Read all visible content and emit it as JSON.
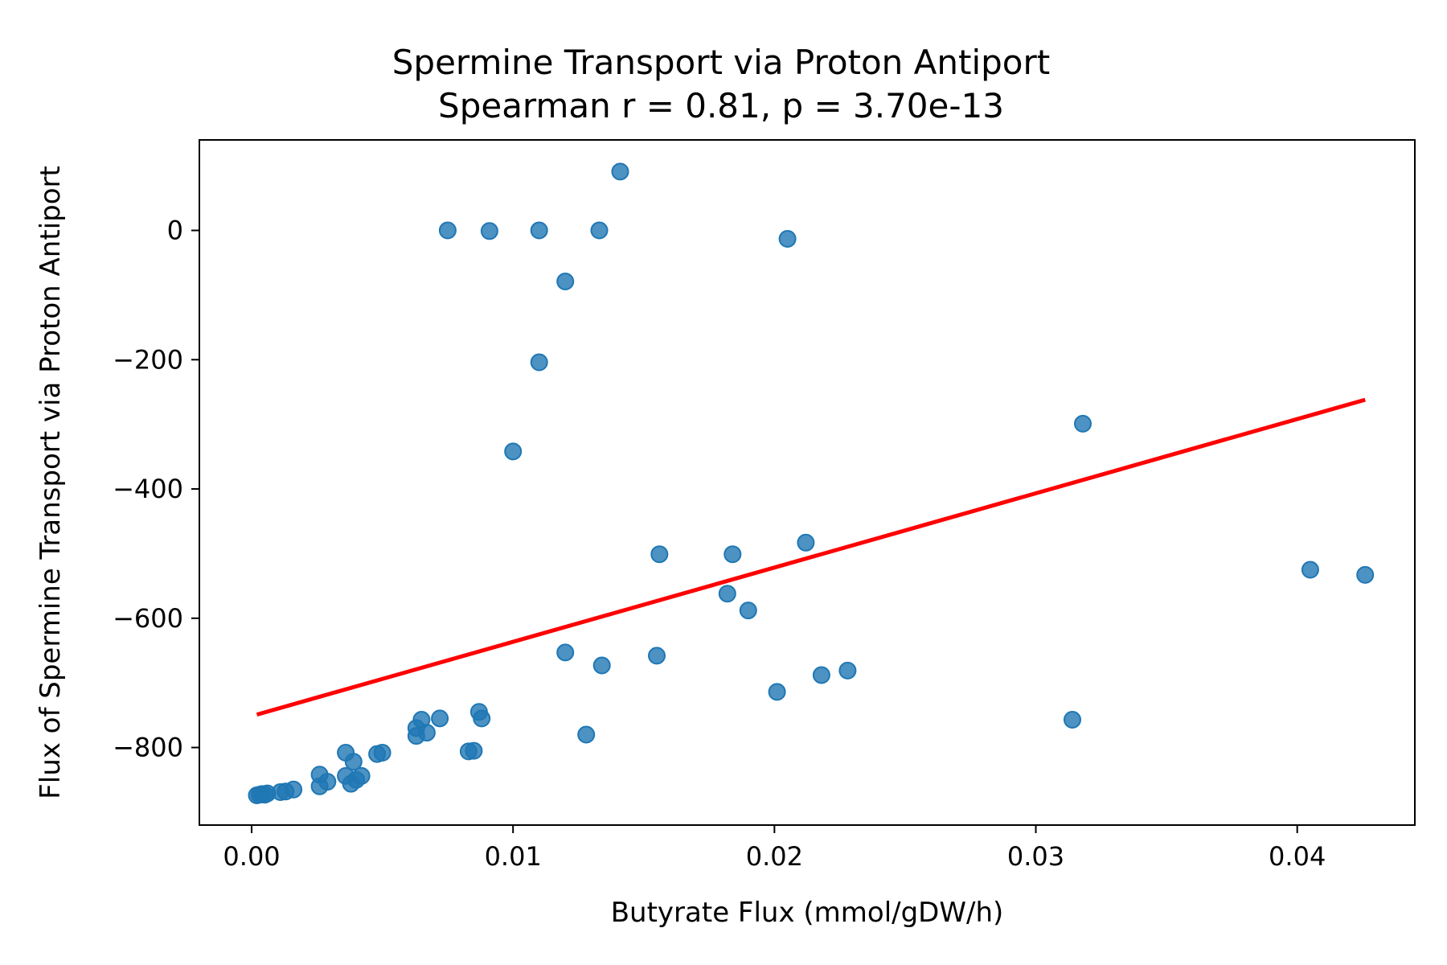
{
  "chart_data": {
    "type": "scatter",
    "title": "Spermine Transport via Proton Antiport",
    "subtitle": "Spearman r = 0.81, p = 3.70e-13",
    "xlabel": "Butyrate Flux (mmol/gDW/h)",
    "ylabel": "Flux of Spermine Transport via Proton Antiport",
    "xlim": [
      -0.002,
      0.0445
    ],
    "ylim": [
      -920,
      140
    ],
    "xticks": [
      0.0,
      0.01,
      0.02,
      0.03,
      0.04
    ],
    "xtick_labels": [
      "0.00",
      "0.01",
      "0.02",
      "0.03",
      "0.04"
    ],
    "yticks": [
      0,
      -200,
      -400,
      -600,
      -800
    ],
    "ytick_labels": [
      "0",
      "−200",
      "−400",
      "−600",
      "−800"
    ],
    "grid": false,
    "colors": {
      "points": "#1f77b4",
      "fit_line": "#ff0000"
    },
    "series": [
      {
        "type": "scatter",
        "points": [
          {
            "x": 0.0002,
            "y": -874
          },
          {
            "x": 0.0003,
            "y": -873
          },
          {
            "x": 0.0004,
            "y": -872
          },
          {
            "x": 0.0005,
            "y": -873
          },
          {
            "x": 0.0006,
            "y": -871
          },
          {
            "x": 0.0011,
            "y": -869
          },
          {
            "x": 0.0013,
            "y": -868
          },
          {
            "x": 0.0016,
            "y": -865
          },
          {
            "x": 0.0026,
            "y": -860
          },
          {
            "x": 0.0026,
            "y": -842
          },
          {
            "x": 0.0029,
            "y": -853
          },
          {
            "x": 0.0036,
            "y": -808
          },
          {
            "x": 0.0036,
            "y": -844
          },
          {
            "x": 0.0038,
            "y": -856
          },
          {
            "x": 0.0039,
            "y": -822
          },
          {
            "x": 0.004,
            "y": -850
          },
          {
            "x": 0.0042,
            "y": -844
          },
          {
            "x": 0.0048,
            "y": -810
          },
          {
            "x": 0.005,
            "y": -808
          },
          {
            "x": 0.0063,
            "y": -770
          },
          {
            "x": 0.0063,
            "y": -782
          },
          {
            "x": 0.0065,
            "y": -757
          },
          {
            "x": 0.0067,
            "y": -777
          },
          {
            "x": 0.0072,
            "y": -755
          },
          {
            "x": 0.0075,
            "y": 0
          },
          {
            "x": 0.0083,
            "y": -806
          },
          {
            "x": 0.0085,
            "y": -805
          },
          {
            "x": 0.0087,
            "y": -745
          },
          {
            "x": 0.0088,
            "y": -755
          },
          {
            "x": 0.0091,
            "y": -1
          },
          {
            "x": 0.01,
            "y": -342
          },
          {
            "x": 0.011,
            "y": 0
          },
          {
            "x": 0.011,
            "y": -204
          },
          {
            "x": 0.012,
            "y": -79
          },
          {
            "x": 0.012,
            "y": -653
          },
          {
            "x": 0.0128,
            "y": -780
          },
          {
            "x": 0.0133,
            "y": 0
          },
          {
            "x": 0.0134,
            "y": -673
          },
          {
            "x": 0.0141,
            "y": 91
          },
          {
            "x": 0.0155,
            "y": -658
          },
          {
            "x": 0.0156,
            "y": -501
          },
          {
            "x": 0.0182,
            "y": -562
          },
          {
            "x": 0.0184,
            "y": -501
          },
          {
            "x": 0.019,
            "y": -588
          },
          {
            "x": 0.0201,
            "y": -714
          },
          {
            "x": 0.0205,
            "y": -13
          },
          {
            "x": 0.0212,
            "y": -483
          },
          {
            "x": 0.0218,
            "y": -688
          },
          {
            "x": 0.0228,
            "y": -681
          },
          {
            "x": 0.0314,
            "y": -757
          },
          {
            "x": 0.0318,
            "y": -299
          },
          {
            "x": 0.0405,
            "y": -525
          },
          {
            "x": 0.0426,
            "y": -533
          }
        ]
      },
      {
        "type": "line",
        "points": [
          {
            "x": 0.0002,
            "y": -749
          },
          {
            "x": 0.0426,
            "y": -262
          }
        ]
      }
    ]
  }
}
